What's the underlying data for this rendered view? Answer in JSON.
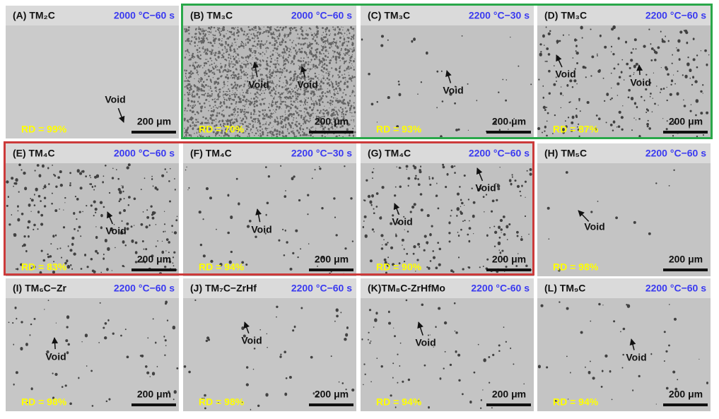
{
  "panels": [
    {
      "label": "(A) TM₂C",
      "condition": "2000 °C−60 s",
      "voids": [
        "Void"
      ],
      "rd": "RD = 99%",
      "scale_bar": "200 μm"
    },
    {
      "label": "(B) TM₃C",
      "condition": "2000 °C−60 s",
      "voids": [
        "Void",
        "Void"
      ],
      "rd": "RD = 70%",
      "scale_bar": "200 μm"
    },
    {
      "label": "(C) TM₃C",
      "condition": "2200 °C−30 s",
      "voids": [
        "Void"
      ],
      "rd": "RD = 93%",
      "scale_bar": "200 μm"
    },
    {
      "label": "(D) TM₃C",
      "condition": "2200 °C−60 s",
      "voids": [
        "Void",
        "Void"
      ],
      "rd": "RD = 87%",
      "scale_bar": "200 μm"
    },
    {
      "label": "(E) TM₄C",
      "condition": "2000 °C−60 s",
      "voids": [
        "Void"
      ],
      "rd": "RD = 83%",
      "scale_bar": "200 μm"
    },
    {
      "label": "(F) TM₄C",
      "condition": "2200 °C−30 s",
      "voids": [
        "Void"
      ],
      "rd": "RD = 94%",
      "scale_bar": "200 μm"
    },
    {
      "label": "(G) TM₄C",
      "condition": "2200 °C−60 s",
      "voids": [
        "Void",
        "Void"
      ],
      "rd": "RD = 90%",
      "scale_bar": "200 μm"
    },
    {
      "label": "(H) TM₅C",
      "condition": "2200 °C−60 s",
      "voids": [
        "Void"
      ],
      "rd": "RD = 98%",
      "scale_bar": "200 μm"
    },
    {
      "label": "(I) TM₆C−Zr",
      "condition": "2200 °C−60 s",
      "voids": [
        "Void"
      ],
      "rd": "RD = 98%",
      "scale_bar": "200 μm"
    },
    {
      "label": "(J) TM₇C−ZrHf",
      "condition": "2200 °C−60 s",
      "voids": [
        "Void"
      ],
      "rd": "RD = 98%",
      "scale_bar": "200 μm"
    },
    {
      "label": "(K)TM₈C-ZrHfMo",
      "condition": "2200 °C-60 s",
      "voids": [
        "Void"
      ],
      "rd": "RD = 94%",
      "scale_bar": "200 μm"
    },
    {
      "label": "(L) TM₉C",
      "condition": "2200 °C−60 s",
      "voids": [
        "Void"
      ],
      "rd": "RD = 94%",
      "scale_bar": "200 μm"
    }
  ]
}
